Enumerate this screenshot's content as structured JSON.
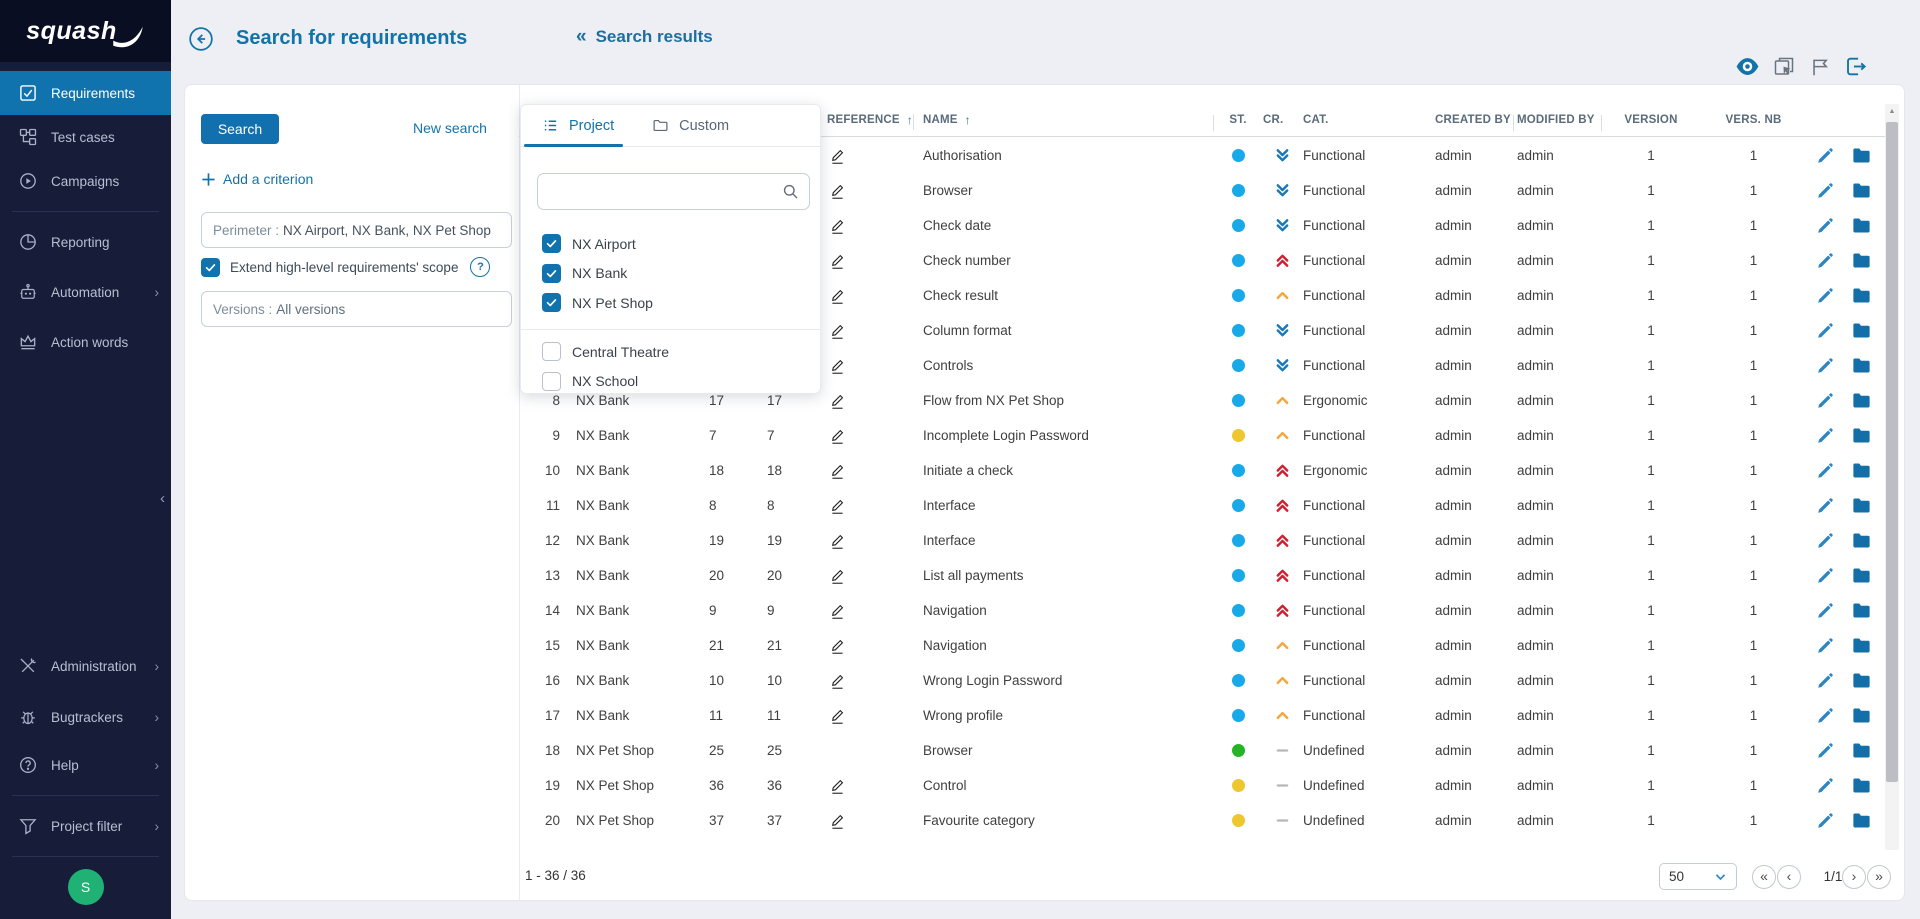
{
  "app": {
    "logo_text": "squash"
  },
  "sidebar": {
    "items": [
      {
        "label": "Requirements",
        "active": true
      },
      {
        "label": "Test cases",
        "active": false
      },
      {
        "label": "Campaigns",
        "active": false
      },
      {
        "label": "Reporting",
        "active": false
      },
      {
        "label": "Automation",
        "active": false,
        "chevron": true
      },
      {
        "label": "Action words",
        "active": false
      }
    ],
    "bottom_items": [
      {
        "label": "Administration",
        "chevron": true
      },
      {
        "label": "Bugtrackers",
        "chevron": true
      },
      {
        "label": "Help",
        "chevron": true
      },
      {
        "label": "Project filter",
        "chevron": true
      }
    ],
    "avatar_initial": "S"
  },
  "header": {
    "title": "Search for requirements",
    "back_chevrons": "«",
    "results_link_label": "Search results"
  },
  "search_panel": {
    "search_button_label": "Search",
    "new_search_label": "New search",
    "add_criterion_label": "Add a criterion",
    "perimeter_prefix": "Perimeter :",
    "perimeter_value": "NX Airport, NX Bank, NX Pet Shop",
    "extend_scope_label": "Extend high-level requirements' scope",
    "extend_scope_checked": true,
    "versions_prefix": "Versions :",
    "versions_value": "All versions"
  },
  "project_dropdown": {
    "tabs": [
      {
        "label": "Project",
        "active": true
      },
      {
        "label": "Custom",
        "active": false
      }
    ],
    "search_value": "",
    "projects": [
      {
        "label": "NX Airport",
        "checked": true
      },
      {
        "label": "NX Bank",
        "checked": true
      },
      {
        "label": "NX Pet Shop",
        "checked": true
      },
      {
        "label": "Central Theatre",
        "checked": false
      },
      {
        "label": "NX School",
        "checked": false
      }
    ]
  },
  "results_table": {
    "columns": {
      "reference": "REFERENCE",
      "name": "NAME",
      "status": "ST.",
      "criticality": "CR.",
      "category": "CAT.",
      "created_by": "CREATED BY",
      "modified_by": "MODIFIED BY",
      "version": "VERSION",
      "versions_nb": "VERS. NB",
      "sort_arrow": "↑"
    },
    "rows": [
      {
        "num": "",
        "project": "",
        "id": "",
        "id2": "",
        "ref_pencil": true,
        "name": "Authorisation",
        "status": "blue",
        "criticality": "minor",
        "category": "Functional",
        "created_by": "admin",
        "modified_by": "admin",
        "version": "1",
        "versions_nb": "1"
      },
      {
        "num": "",
        "project": "",
        "id": "",
        "id2": "",
        "ref_pencil": true,
        "name": "Browser",
        "status": "blue",
        "criticality": "minor",
        "category": "Functional",
        "created_by": "admin",
        "modified_by": "admin",
        "version": "1",
        "versions_nb": "1"
      },
      {
        "num": "",
        "project": "",
        "id": "",
        "id2": "",
        "ref_pencil": true,
        "name": "Check date",
        "status": "blue",
        "criticality": "minor",
        "category": "Functional",
        "created_by": "admin",
        "modified_by": "admin",
        "version": "1",
        "versions_nb": "1"
      },
      {
        "num": "",
        "project": "",
        "id": "",
        "id2": "",
        "ref_pencil": true,
        "name": "Check number",
        "status": "blue",
        "criticality": "critical",
        "category": "Functional",
        "created_by": "admin",
        "modified_by": "admin",
        "version": "1",
        "versions_nb": "1"
      },
      {
        "num": "",
        "project": "",
        "id": "",
        "id2": "",
        "ref_pencil": true,
        "name": "Check result",
        "status": "blue",
        "criticality": "major",
        "category": "Functional",
        "created_by": "admin",
        "modified_by": "admin",
        "version": "1",
        "versions_nb": "1"
      },
      {
        "num": "",
        "project": "",
        "id": "",
        "id2": "",
        "ref_pencil": true,
        "name": "Column format",
        "status": "blue",
        "criticality": "minor",
        "category": "Functional",
        "created_by": "admin",
        "modified_by": "admin",
        "version": "1",
        "versions_nb": "1"
      },
      {
        "num": "",
        "project": "",
        "id": "",
        "id2": "",
        "ref_pencil": true,
        "name": "Controls",
        "status": "blue",
        "criticality": "minor",
        "category": "Functional",
        "created_by": "admin",
        "modified_by": "admin",
        "version": "1",
        "versions_nb": "1"
      },
      {
        "num": "8",
        "project": "NX Bank",
        "id": "17",
        "id2": "17",
        "ref_pencil": true,
        "name": "Flow from NX Pet Shop",
        "status": "blue",
        "criticality": "major",
        "category": "Ergonomic",
        "created_by": "admin",
        "modified_by": "admin",
        "version": "1",
        "versions_nb": "1"
      },
      {
        "num": "9",
        "project": "NX Bank",
        "id": "7",
        "id2": "7",
        "ref_pencil": true,
        "name": "Incomplete Login Password",
        "status": "yellow",
        "criticality": "major",
        "category": "Functional",
        "created_by": "admin",
        "modified_by": "admin",
        "version": "1",
        "versions_nb": "1"
      },
      {
        "num": "10",
        "project": "NX Bank",
        "id": "18",
        "id2": "18",
        "ref_pencil": true,
        "name": "Initiate a check",
        "status": "blue",
        "criticality": "critical",
        "category": "Ergonomic",
        "created_by": "admin",
        "modified_by": "admin",
        "version": "1",
        "versions_nb": "1"
      },
      {
        "num": "11",
        "project": "NX Bank",
        "id": "8",
        "id2": "8",
        "ref_pencil": true,
        "name": "Interface",
        "status": "blue",
        "criticality": "critical",
        "category": "Functional",
        "created_by": "admin",
        "modified_by": "admin",
        "version": "1",
        "versions_nb": "1"
      },
      {
        "num": "12",
        "project": "NX Bank",
        "id": "19",
        "id2": "19",
        "ref_pencil": true,
        "name": "Interface",
        "status": "blue",
        "criticality": "critical",
        "category": "Functional",
        "created_by": "admin",
        "modified_by": "admin",
        "version": "1",
        "versions_nb": "1"
      },
      {
        "num": "13",
        "project": "NX Bank",
        "id": "20",
        "id2": "20",
        "ref_pencil": true,
        "name": "List all payments",
        "status": "blue",
        "criticality": "critical",
        "category": "Functional",
        "created_by": "admin",
        "modified_by": "admin",
        "version": "1",
        "versions_nb": "1"
      },
      {
        "num": "14",
        "project": "NX Bank",
        "id": "9",
        "id2": "9",
        "ref_pencil": true,
        "name": "Navigation",
        "status": "blue",
        "criticality": "critical",
        "category": "Functional",
        "created_by": "admin",
        "modified_by": "admin",
        "version": "1",
        "versions_nb": "1"
      },
      {
        "num": "15",
        "project": "NX Bank",
        "id": "21",
        "id2": "21",
        "ref_pencil": true,
        "name": "Navigation",
        "status": "blue",
        "criticality": "major",
        "category": "Functional",
        "created_by": "admin",
        "modified_by": "admin",
        "version": "1",
        "versions_nb": "1"
      },
      {
        "num": "16",
        "project": "NX Bank",
        "id": "10",
        "id2": "10",
        "ref_pencil": true,
        "name": "Wrong Login Password",
        "status": "blue",
        "criticality": "major",
        "category": "Functional",
        "created_by": "admin",
        "modified_by": "admin",
        "version": "1",
        "versions_nb": "1"
      },
      {
        "num": "17",
        "project": "NX Bank",
        "id": "11",
        "id2": "11",
        "ref_pencil": true,
        "name": "Wrong profile",
        "status": "blue",
        "criticality": "major",
        "category": "Functional",
        "created_by": "admin",
        "modified_by": "admin",
        "version": "1",
        "versions_nb": "1"
      },
      {
        "num": "18",
        "project": "NX Pet Shop",
        "id": "25",
        "id2": "25",
        "ref_pencil": false,
        "name": "Browser",
        "status": "green",
        "criticality": "undefined",
        "category": "Undefined",
        "created_by": "admin",
        "modified_by": "admin",
        "version": "1",
        "versions_nb": "1"
      },
      {
        "num": "19",
        "project": "NX Pet Shop",
        "id": "36",
        "id2": "36",
        "ref_pencil": true,
        "name": "Control",
        "status": "yellow",
        "criticality": "undefined",
        "category": "Undefined",
        "created_by": "admin",
        "modified_by": "admin",
        "version": "1",
        "versions_nb": "1"
      },
      {
        "num": "20",
        "project": "NX Pet Shop",
        "id": "37",
        "id2": "37",
        "ref_pencil": true,
        "name": "Favourite category",
        "status": "yellow",
        "criticality": "undefined",
        "category": "Undefined",
        "created_by": "admin",
        "modified_by": "admin",
        "version": "1",
        "versions_nb": "1"
      }
    ],
    "footer": {
      "range_label": "1 - 36 / 36",
      "page_size": "50",
      "page_indicator": "1/1"
    }
  },
  "status_colors": {
    "blue": "#18a9e9",
    "green": "#25b425",
    "yellow": "#edc72d"
  },
  "criticality_colors": {
    "critical": "#d01f2f",
    "major": "#f6a63a",
    "minor": "#1878ba",
    "undefined": "#b4b7ba"
  }
}
